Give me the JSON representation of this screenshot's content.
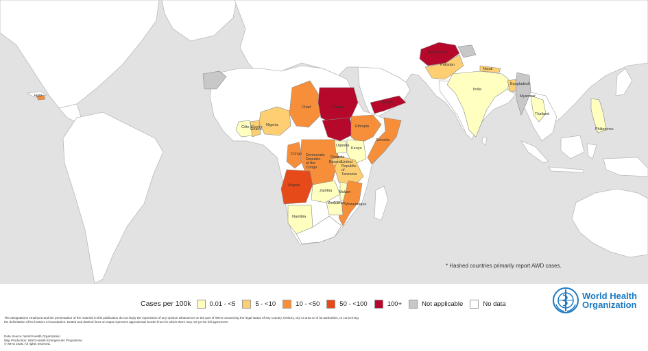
{
  "map": {
    "ocean_color": "#e2e2e2",
    "land_color": "#ffffff",
    "note": "* Hashed countries primarily report AWD cases.",
    "country_labels": [
      "Chad",
      "Sudan",
      "Yemen",
      "Ethiopia",
      "Somalia",
      "Nigeria",
      "Côte d'Ivoire",
      "Ghana",
      "Congo",
      "Democratic Republic of the Congo",
      "Uganda",
      "Kenya",
      "Burundi",
      "Rwanda",
      "United Republic of Tanzania",
      "Angola",
      "Zambia",
      "Malawi",
      "Mozambique",
      "Zimbabwe",
      "Namibia",
      "Afghanistan",
      "Pakistan",
      "Nepal",
      "India",
      "Bangladesh",
      "Myanmar",
      "Thailand",
      "Philippines",
      "Haiti"
    ]
  },
  "legend": {
    "title": "Cases per 100k",
    "items": [
      {
        "label": "0.01 - <5",
        "color": "#ffffc0"
      },
      {
        "label": "5 - <10",
        "color": "#fdcf72"
      },
      {
        "label": "10 - <50",
        "color": "#f78f3a"
      },
      {
        "label": "50 - <100",
        "color": "#e64a19"
      },
      {
        "label": "100+",
        "color": "#b5082a"
      },
      {
        "label": "Not applicable",
        "color": "#c8c8c8"
      },
      {
        "label": "No data",
        "color": "#ffffff"
      }
    ]
  },
  "logo": {
    "line1": "World Health",
    "line2": "Organization",
    "color": "#1a78c2"
  },
  "footer": {
    "disclaimer": "The designations employed and the presentation of the material in this publication do not imply the expression of any opinion whatsoever on the part of WHO concerning the legal status of any country, territory, city or area or of its authorities, or concerning the delimitation of its frontiers or boundaries. Dotted and dashed lines on maps represent approximate border lines for which there may not yet be full agreement.",
    "data_source": "Data Source: World Health Organization",
    "map_production": "Map Production: WHO Health Emergencies Programme",
    "copyright": "© WHO 2025. All rights reserved."
  }
}
